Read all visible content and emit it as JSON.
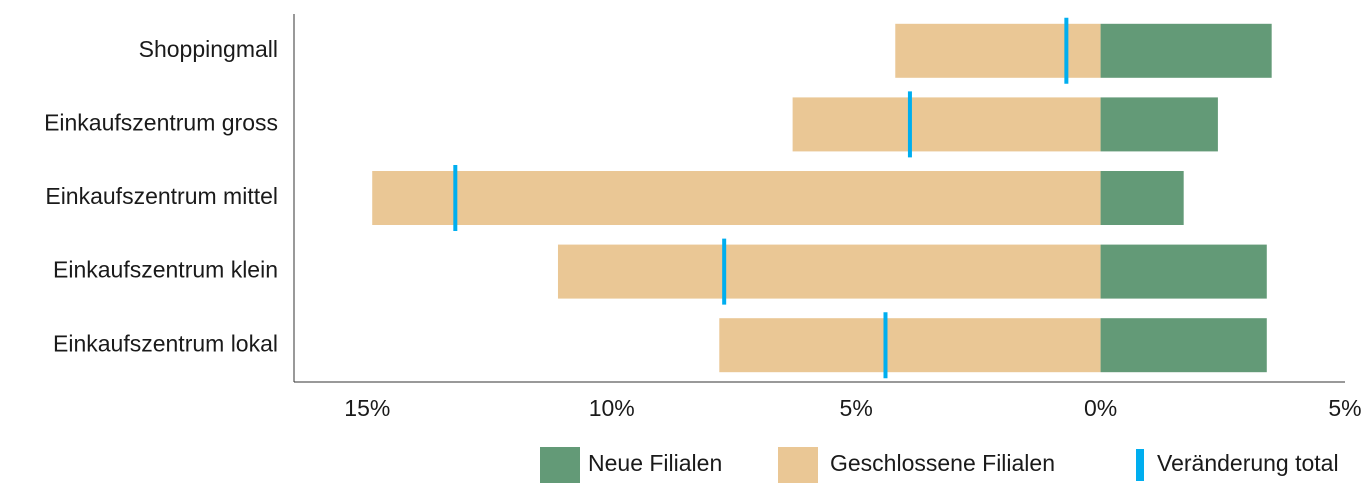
{
  "chart_data": {
    "type": "bar",
    "orientation": "horizontal",
    "categories": [
      "Shoppingmall",
      "Einkaufszentrum gross",
      "Einkaufszentrum mittel",
      "Einkaufszentrum klein",
      "Einkaufszentrum lokal"
    ],
    "series": [
      {
        "name": "Neue Filialen",
        "color": "#639a77",
        "values": [
          3.5,
          2.4,
          1.7,
          3.4,
          3.4
        ]
      },
      {
        "name": "Geschlossene Filialen",
        "color": "#eac795",
        "values": [
          -4.2,
          -6.3,
          -14.9,
          -11.1,
          -7.8
        ]
      },
      {
        "name": "Veränderung total",
        "color": "#00aeef",
        "type": "marker",
        "values": [
          -0.7,
          -3.9,
          -13.2,
          -7.7,
          -4.4
        ]
      }
    ],
    "xlim": [
      -16.5,
      5
    ],
    "xticks": [
      {
        "value": -15,
        "label": "15%"
      },
      {
        "value": -10,
        "label": "10%"
      },
      {
        "value": -5,
        "label": "5%"
      },
      {
        "value": 0,
        "label": "0%"
      },
      {
        "value": 5,
        "label": "5%"
      }
    ],
    "grid": false,
    "legend": "bottom-right"
  }
}
